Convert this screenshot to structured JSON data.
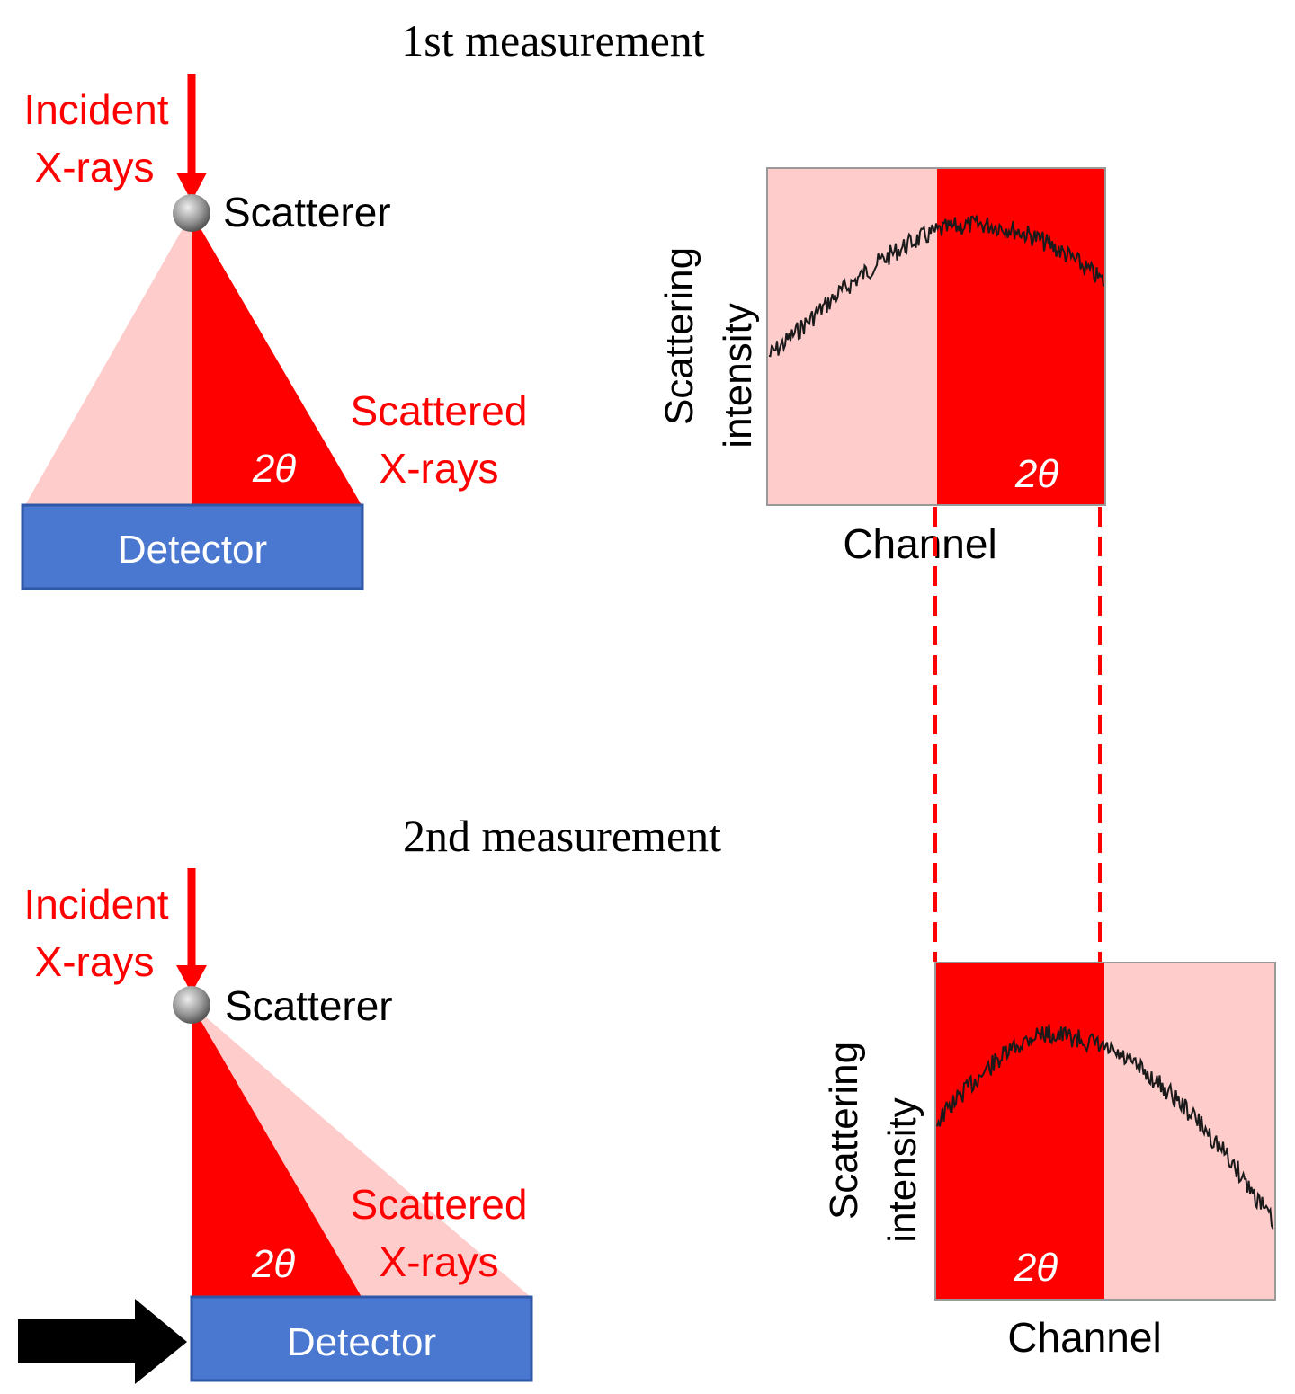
{
  "measurements": [
    {
      "title": "1st measurement",
      "incident_label": [
        "Incident",
        "X-rays"
      ],
      "scatterer_label": "Scatterer",
      "scattered_label": [
        "Scattered",
        "X-rays"
      ],
      "angle_label": "2θ",
      "detector_label": "Detector",
      "plot": {
        "ylabel": [
          "Scattering",
          "intensity"
        ],
        "xlabel": "Channel",
        "angle_label": "2θ"
      }
    },
    {
      "title": "2nd measurement",
      "incident_label": [
        "Incident",
        "X-rays"
      ],
      "scatterer_label": "Scatterer",
      "scattered_label": [
        "Scattered",
        "X-rays"
      ],
      "angle_label": "2θ",
      "detector_label": "Detector",
      "plot": {
        "ylabel": [
          "Scattering",
          "intensity"
        ],
        "xlabel": "Channel",
        "angle_label": "2θ"
      }
    }
  ],
  "colors": {
    "beam": "#ff0000",
    "beam_light": "#ffcccc",
    "detector": "#4a78d0",
    "detector_border": "#2f57a8",
    "curve": "#1a1a1a",
    "arrow": "#000000"
  }
}
